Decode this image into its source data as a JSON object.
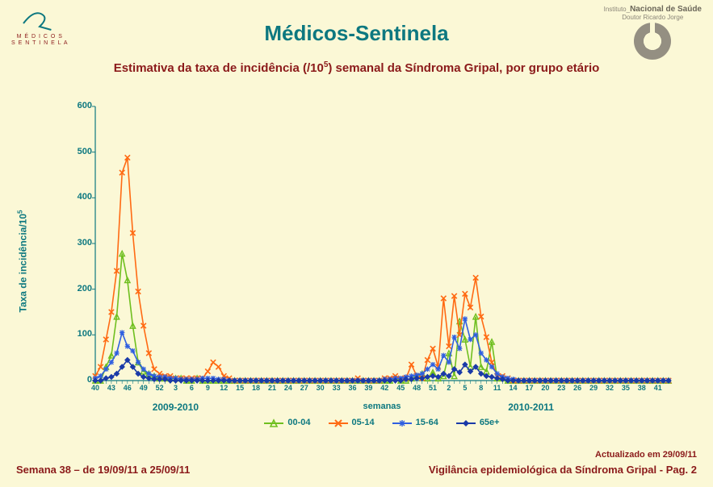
{
  "header": {
    "title": "Médicos-Sentinela",
    "subtitle_pre": "Estimativa da taxa de incidência (/10",
    "subtitle_sup": "5",
    "subtitle_post": ") semanal da Síndroma Gripal, por grupo etário",
    "logo_left_line1": "M É D I C O S",
    "logo_left_line2": "S E N T I N E L A",
    "insa_pre": "Instituto_",
    "insa_strong": "Nacional de Saúde",
    "insa_sub": "Doutor Ricardo Jorge"
  },
  "chart": {
    "type": "line",
    "background_color": "#fbf8d6",
    "axis_color": "#0d7880",
    "ylabel_pre": "Taxa de incidência/10",
    "ylabel_sup": "5",
    "xlabel": "semanas",
    "period1": "2009-2010",
    "period2": "2010-2011",
    "ylim": [
      0,
      600
    ],
    "ytick_step": 100,
    "yticks": [
      0,
      100,
      200,
      300,
      400,
      500,
      600
    ],
    "x_categories": [
      "40",
      "41",
      "42",
      "43",
      "44",
      "45",
      "46",
      "47",
      "48",
      "49",
      "50",
      "51",
      "52",
      "1",
      "2",
      "3",
      "4",
      "5",
      "6",
      "7",
      "8",
      "9",
      "10",
      "11",
      "12",
      "13",
      "14",
      "15",
      "16",
      "17",
      "18",
      "19",
      "20",
      "21",
      "22",
      "23",
      "24",
      "25",
      "26",
      "27",
      "28",
      "29",
      "30",
      "31",
      "32",
      "33",
      "34",
      "35",
      "36",
      "37",
      "38",
      "39",
      "40",
      "41",
      "42",
      "43",
      "44",
      "45",
      "46",
      "47",
      "48",
      "49",
      "50",
      "51",
      "52",
      "1",
      "2",
      "3",
      "4",
      "5",
      "6",
      "7",
      "8",
      "9",
      "10",
      "11",
      "12",
      "13",
      "14",
      "15",
      "16",
      "17",
      "18",
      "19",
      "20",
      "21",
      "22",
      "23",
      "24",
      "25",
      "26",
      "27",
      "28",
      "29",
      "30",
      "31",
      "32",
      "33",
      "34",
      "35",
      "36",
      "37",
      "38",
      "39",
      "40",
      "41",
      "42",
      "43"
    ],
    "x_tick_every": 3,
    "series": [
      {
        "name": "00-04",
        "color": "#6fbf1f",
        "marker": "triangle",
        "values": [
          0,
          0,
          30,
          55,
          140,
          278,
          220,
          120,
          40,
          20,
          15,
          10,
          5,
          5,
          5,
          5,
          5,
          0,
          0,
          5,
          0,
          0,
          0,
          0,
          0,
          0,
          0,
          0,
          0,
          0,
          0,
          0,
          0,
          0,
          0,
          0,
          0,
          0,
          0,
          0,
          0,
          0,
          0,
          0,
          0,
          0,
          0,
          0,
          0,
          0,
          0,
          0,
          0,
          0,
          0,
          0,
          5,
          0,
          0,
          5,
          10,
          15,
          5,
          18,
          5,
          10,
          60,
          10,
          130,
          90,
          30,
          140,
          30,
          20,
          85,
          5,
          5,
          0,
          0,
          0,
          0,
          0,
          0,
          0,
          0,
          0,
          0,
          0,
          0,
          0,
          0,
          0,
          0,
          0,
          0,
          0,
          0,
          0,
          0,
          0,
          0,
          0,
          0,
          0,
          0,
          0,
          0,
          0
        ]
      },
      {
        "name": "05-14",
        "color": "#ff6a13",
        "marker": "x",
        "values": [
          10,
          30,
          90,
          150,
          240,
          455,
          488,
          323,
          195,
          120,
          60,
          25,
          15,
          10,
          10,
          5,
          5,
          5,
          5,
          5,
          5,
          20,
          40,
          30,
          10,
          5,
          0,
          0,
          0,
          0,
          0,
          0,
          0,
          0,
          0,
          0,
          0,
          0,
          0,
          0,
          0,
          0,
          0,
          0,
          0,
          0,
          0,
          0,
          0,
          5,
          0,
          0,
          0,
          0,
          5,
          5,
          10,
          5,
          5,
          35,
          10,
          5,
          45,
          70,
          30,
          180,
          75,
          185,
          100,
          190,
          160,
          225,
          140,
          95,
          40,
          10,
          10,
          5,
          0,
          0,
          0,
          0,
          0,
          0,
          0,
          0,
          0,
          0,
          0,
          0,
          0,
          0,
          0,
          0,
          0,
          0,
          0,
          0,
          0,
          0,
          0,
          0,
          0,
          0,
          0,
          0,
          0,
          0
        ]
      },
      {
        "name": "15-64",
        "color": "#2f5fe0",
        "marker": "star",
        "values": [
          5,
          10,
          25,
          40,
          60,
          105,
          75,
          65,
          40,
          25,
          15,
          10,
          8,
          8,
          5,
          5,
          3,
          3,
          3,
          3,
          5,
          5,
          5,
          3,
          3,
          0,
          0,
          0,
          0,
          0,
          0,
          0,
          0,
          0,
          0,
          0,
          0,
          0,
          0,
          0,
          0,
          0,
          0,
          0,
          0,
          0,
          0,
          0,
          0,
          0,
          0,
          0,
          0,
          0,
          3,
          3,
          5,
          5,
          8,
          10,
          12,
          15,
          25,
          35,
          25,
          55,
          40,
          95,
          70,
          135,
          90,
          100,
          60,
          45,
          30,
          15,
          8,
          5,
          3,
          0,
          0,
          0,
          0,
          0,
          0,
          0,
          0,
          0,
          0,
          0,
          0,
          0,
          0,
          0,
          0,
          0,
          0,
          0,
          0,
          0,
          0,
          0,
          0,
          0,
          0,
          0,
          0,
          0
        ]
      },
      {
        "name": "65e+",
        "color": "#1a3aa8",
        "marker": "diamond",
        "values": [
          0,
          0,
          5,
          8,
          15,
          30,
          45,
          30,
          15,
          8,
          5,
          3,
          3,
          3,
          0,
          0,
          0,
          0,
          0,
          0,
          0,
          0,
          0,
          0,
          0,
          0,
          0,
          0,
          0,
          0,
          0,
          0,
          0,
          0,
          0,
          0,
          0,
          0,
          0,
          0,
          0,
          0,
          0,
          0,
          0,
          0,
          0,
          0,
          0,
          0,
          0,
          0,
          0,
          0,
          0,
          0,
          0,
          0,
          3,
          3,
          5,
          5,
          8,
          10,
          8,
          15,
          10,
          25,
          18,
          35,
          20,
          30,
          15,
          10,
          8,
          5,
          3,
          0,
          0,
          0,
          0,
          0,
          0,
          0,
          0,
          0,
          0,
          0,
          0,
          0,
          0,
          0,
          0,
          0,
          0,
          0,
          0,
          0,
          0,
          0,
          0,
          0,
          0,
          0,
          0,
          0,
          0,
          0
        ]
      }
    ],
    "legend_labels": [
      "00-04",
      "05-14",
      "15-64",
      "65e+"
    ]
  },
  "footer": {
    "left": "Semana 38 – de 19/09/11 a 25/09/11",
    "update": "Actualizado em 29/09/11",
    "right": "Vigilância epidemiológica da Síndroma Gripal - Pag. 2"
  }
}
